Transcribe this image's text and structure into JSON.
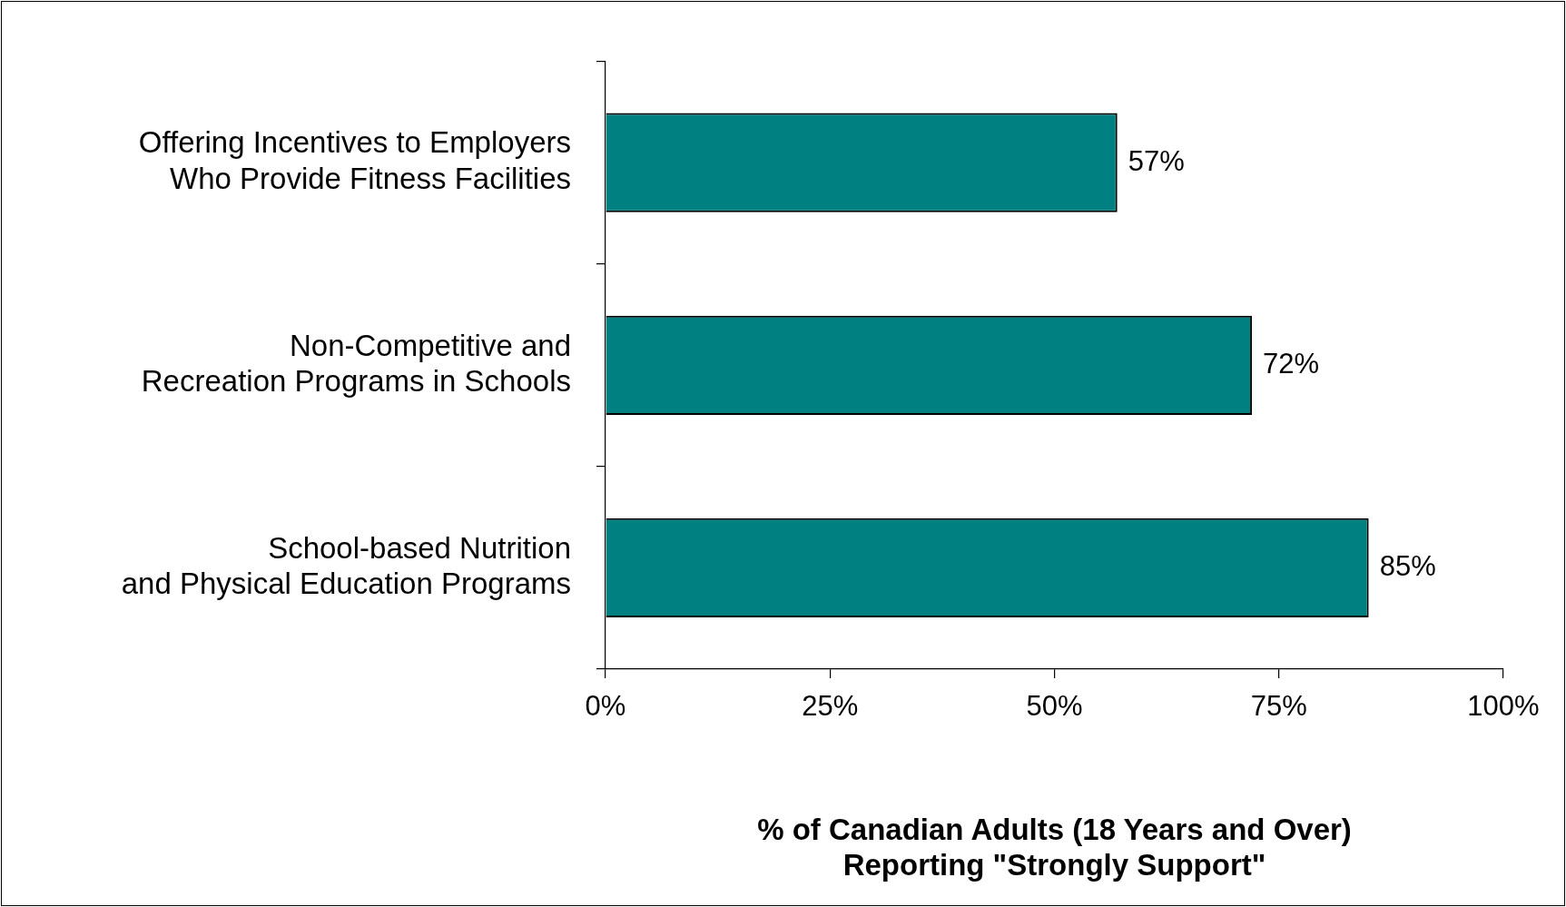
{
  "chart_data": {
    "type": "bar",
    "orientation": "horizontal",
    "categories": [
      "Offering Incentives to Employers\nWho Provide Fitness Facilities",
      "Non-Competitive and\nRecreation Programs in Schools",
      "School-based Nutrition\nand Physical Education Programs"
    ],
    "values": [
      57,
      72,
      85
    ],
    "value_labels": [
      "57%",
      "72%",
      "85%"
    ],
    "color": "#008080",
    "xlabel": "% of Canadian Adults (18 Years and Over)\nReporting \"Strongly Support\"",
    "xlim": [
      0,
      100
    ],
    "xticks": [
      {
        "value": 0,
        "label": "0%"
      },
      {
        "value": 25,
        "label": "25%"
      },
      {
        "value": 50,
        "label": "50%"
      },
      {
        "value": 75,
        "label": "75%"
      },
      {
        "value": 100,
        "label": "100%"
      }
    ],
    "grid": false,
    "legend": false
  }
}
